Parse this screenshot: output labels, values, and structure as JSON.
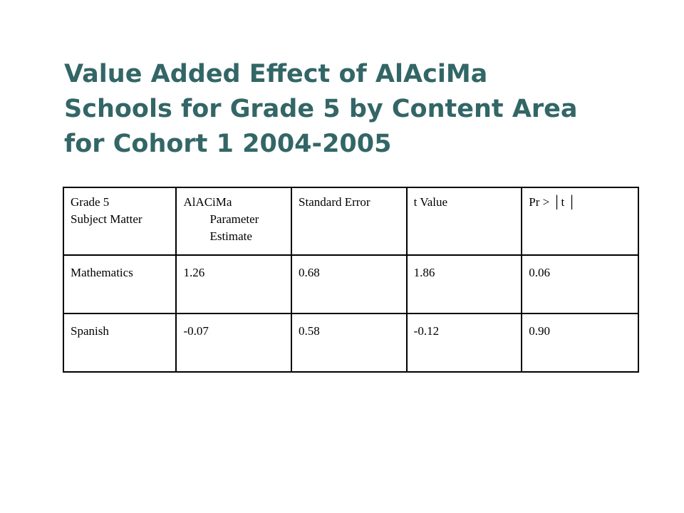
{
  "title": {
    "line1": "Value Added Effect of AlAciMa",
    "line2": "Schools for Grade 5 by Content Area",
    "line3": "for Cohort 1 2004-2005"
  },
  "table": {
    "headers": [
      {
        "lines": [
          "Grade 5",
          "Subject Matter"
        ]
      },
      {
        "lines": [
          "AlACiMa",
          "Parameter",
          "Estimate"
        ]
      },
      {
        "lines": [
          "Standard Error"
        ]
      },
      {
        "lines": [
          "t Value"
        ]
      },
      {
        "lines": [
          "Pr > │t │"
        ]
      }
    ],
    "rows": [
      {
        "cells": [
          "Mathematics",
          "1.26",
          "0.68",
          "1.86",
          "0.06"
        ]
      },
      {
        "cells": [
          "Spanish",
          "-0.07",
          "0.58",
          "-0.12",
          "0.90"
        ]
      }
    ]
  },
  "colors": {
    "title": "#336666",
    "border": "#000000",
    "background": "#ffffff"
  }
}
